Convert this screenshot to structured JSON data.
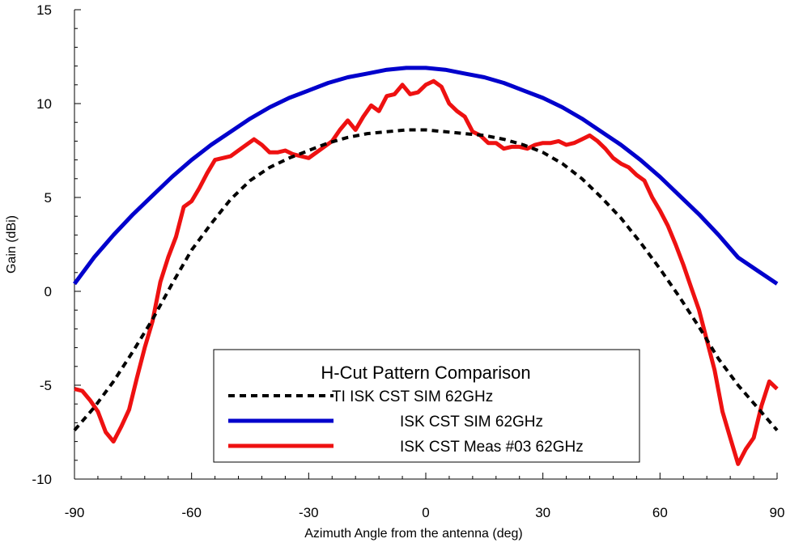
{
  "chart_data": {
    "type": "line",
    "title": "",
    "xlabel": "Azimuth Angle from the antenna (deg)",
    "ylabel": "Gain (dBi)",
    "xlim": [
      -90,
      90
    ],
    "ylim": [
      -10,
      15
    ],
    "xticks": [
      -90,
      -60,
      -30,
      0,
      30,
      60,
      90
    ],
    "yticks": [
      -10,
      -5,
      0,
      5,
      10,
      15
    ],
    "grid": false,
    "legend": {
      "title": "H-Cut Pattern Comparison",
      "placement": "bottom-center"
    },
    "series": [
      {
        "name": "TI ISK CST SIM 62GHz",
        "color": "#000000",
        "style": "dashed",
        "x": [
          -90,
          -85,
          -80,
          -75,
          -70,
          -65,
          -60,
          -55,
          -50,
          -45,
          -40,
          -35,
          -30,
          -25,
          -20,
          -15,
          -10,
          -5,
          0,
          5,
          10,
          15,
          20,
          25,
          30,
          35,
          40,
          45,
          50,
          55,
          60,
          65,
          70,
          75,
          80,
          85,
          90
        ],
        "y": [
          -7.4,
          -6.2,
          -4.8,
          -3.2,
          -1.5,
          0.4,
          2.2,
          3.6,
          4.9,
          5.9,
          6.6,
          7.1,
          7.5,
          7.9,
          8.2,
          8.4,
          8.5,
          8.6,
          8.6,
          8.5,
          8.4,
          8.3,
          8.1,
          7.8,
          7.4,
          6.8,
          6.0,
          5.0,
          3.9,
          2.6,
          1.2,
          -0.3,
          -1.9,
          -3.6,
          -5.0,
          -6.2,
          -7.4
        ]
      },
      {
        "name": "ISK CST SIM 62GHz",
        "color": "#0000cc",
        "style": "solid",
        "x": [
          -90,
          -85,
          -80,
          -75,
          -70,
          -65,
          -60,
          -55,
          -50,
          -45,
          -40,
          -35,
          -30,
          -25,
          -20,
          -15,
          -10,
          -5,
          0,
          5,
          10,
          15,
          20,
          25,
          30,
          35,
          40,
          45,
          50,
          55,
          60,
          65,
          70,
          75,
          80,
          85,
          90
        ],
        "y": [
          0.4,
          1.8,
          3.0,
          4.1,
          5.1,
          6.1,
          7.0,
          7.8,
          8.5,
          9.2,
          9.8,
          10.3,
          10.7,
          11.1,
          11.4,
          11.6,
          11.8,
          11.9,
          11.9,
          11.8,
          11.6,
          11.4,
          11.1,
          10.7,
          10.3,
          9.8,
          9.2,
          8.5,
          7.8,
          7.0,
          6.1,
          5.1,
          4.1,
          3.0,
          1.8,
          1.1,
          0.4
        ]
      },
      {
        "name": "ISK CST Meas #03 62GHz",
        "color": "#ee1111",
        "style": "solid",
        "x": [
          -90,
          -88,
          -86,
          -84,
          -82,
          -80,
          -78,
          -76,
          -74,
          -72,
          -70,
          -68,
          -66,
          -64,
          -62,
          -60,
          -58,
          -56,
          -54,
          -52,
          -50,
          -48,
          -46,
          -44,
          -42,
          -40,
          -38,
          -36,
          -34,
          -32,
          -30,
          -28,
          -26,
          -24,
          -22,
          -20,
          -18,
          -16,
          -14,
          -12,
          -10,
          -8,
          -6,
          -4,
          -2,
          0,
          2,
          4,
          6,
          8,
          10,
          12,
          14,
          16,
          18,
          20,
          22,
          24,
          26,
          28,
          30,
          32,
          34,
          36,
          38,
          40,
          42,
          44,
          46,
          48,
          50,
          52,
          54,
          56,
          58,
          60,
          62,
          64,
          66,
          68,
          70,
          72,
          74,
          76,
          78,
          80,
          82,
          84,
          86,
          88,
          90
        ],
        "y": [
          -5.2,
          -5.3,
          -5.8,
          -6.4,
          -7.5,
          -8.0,
          -7.2,
          -6.3,
          -4.6,
          -3.0,
          -1.6,
          0.5,
          1.8,
          2.9,
          4.5,
          4.8,
          5.5,
          6.3,
          7.0,
          7.1,
          7.2,
          7.5,
          7.8,
          8.1,
          7.8,
          7.4,
          7.4,
          7.5,
          7.3,
          7.2,
          7.1,
          7.4,
          7.7,
          8.0,
          8.6,
          9.1,
          8.6,
          9.3,
          9.9,
          9.6,
          10.4,
          10.5,
          11.0,
          10.5,
          10.6,
          11.0,
          11.2,
          10.9,
          10.0,
          9.6,
          9.3,
          8.5,
          8.3,
          7.9,
          7.9,
          7.6,
          7.7,
          7.7,
          7.6,
          7.8,
          7.9,
          7.9,
          8.0,
          7.8,
          7.9,
          8.1,
          8.3,
          8.0,
          7.6,
          7.1,
          6.8,
          6.6,
          6.2,
          5.9,
          5.0,
          4.3,
          3.5,
          2.5,
          1.4,
          0.2,
          -1.0,
          -2.6,
          -4.2,
          -6.4,
          -7.8,
          -9.2,
          -8.4,
          -7.8,
          -6.1,
          -4.8,
          -5.2
        ]
      }
    ]
  }
}
